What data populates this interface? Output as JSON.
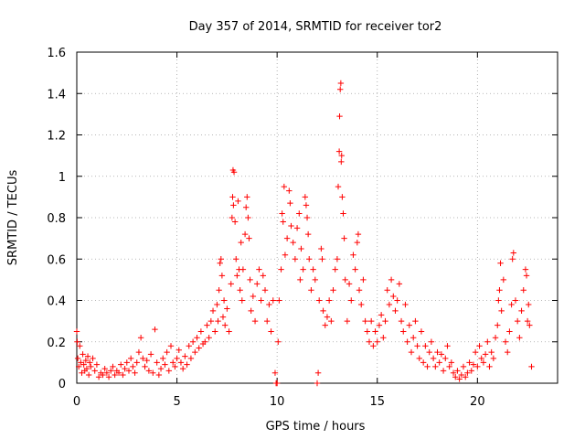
{
  "chart_data": {
    "type": "scatter",
    "title": "Day 357 of 2014, SRMTID for receiver tor2",
    "xlabel": "GPS time / hours",
    "ylabel": "SRMTID / TECUs",
    "xlim": [
      0,
      24
    ],
    "ylim": [
      0,
      1.6
    ],
    "x_ticks": [
      0,
      5,
      10,
      15,
      20
    ],
    "y_ticks": [
      0,
      0.2,
      0.4,
      0.6,
      0.8,
      1,
      1.2,
      1.4,
      1.6
    ],
    "x_tick_labels": [
      "0",
      "5",
      "10",
      "15",
      "20"
    ],
    "y_tick_labels": [
      "0",
      "0.2",
      "0.4",
      "0.6",
      "0.8",
      "1",
      "1.2",
      "1.4",
      "1.6"
    ],
    "grid": true,
    "marker": "plus",
    "color": "#ff0000",
    "series": [
      {
        "name": "SRMTID",
        "points": [
          [
            0.0,
            0.25
          ],
          [
            0.02,
            0.2
          ],
          [
            0.05,
            0.12
          ],
          [
            0.1,
            0.08
          ],
          [
            0.15,
            0.18
          ],
          [
            0.2,
            0.1
          ],
          [
            0.25,
            0.05
          ],
          [
            0.3,
            0.14
          ],
          [
            0.35,
            0.09
          ],
          [
            0.4,
            0.06
          ],
          [
            0.45,
            0.11
          ],
          [
            0.5,
            0.07
          ],
          [
            0.55,
            0.13
          ],
          [
            0.6,
            0.04
          ],
          [
            0.65,
            0.1
          ],
          [
            0.7,
            0.08
          ],
          [
            0.8,
            0.12
          ],
          [
            0.9,
            0.06
          ],
          [
            1.0,
            0.09
          ],
          [
            1.1,
            0.03
          ],
          [
            1.2,
            0.05
          ],
          [
            1.3,
            0.04
          ],
          [
            1.4,
            0.07
          ],
          [
            1.5,
            0.05
          ],
          [
            1.6,
            0.03
          ],
          [
            1.7,
            0.06
          ],
          [
            1.8,
            0.08
          ],
          [
            1.9,
            0.04
          ],
          [
            2.0,
            0.06
          ],
          [
            2.1,
            0.05
          ],
          [
            2.2,
            0.09
          ],
          [
            2.3,
            0.04
          ],
          [
            2.4,
            0.07
          ],
          [
            2.5,
            0.1
          ],
          [
            2.6,
            0.06
          ],
          [
            2.7,
            0.12
          ],
          [
            2.8,
            0.08
          ],
          [
            2.9,
            0.05
          ],
          [
            3.0,
            0.1
          ],
          [
            3.1,
            0.15
          ],
          [
            3.2,
            0.22
          ],
          [
            3.3,
            0.12
          ],
          [
            3.4,
            0.08
          ],
          [
            3.5,
            0.11
          ],
          [
            3.6,
            0.06
          ],
          [
            3.7,
            0.14
          ],
          [
            3.8,
            0.05
          ],
          [
            3.9,
            0.26
          ],
          [
            4.0,
            0.1
          ],
          [
            4.1,
            0.04
          ],
          [
            4.2,
            0.07
          ],
          [
            4.3,
            0.12
          ],
          [
            4.4,
            0.09
          ],
          [
            4.5,
            0.15
          ],
          [
            4.6,
            0.06
          ],
          [
            4.7,
            0.18
          ],
          [
            4.8,
            0.1
          ],
          [
            4.9,
            0.08
          ],
          [
            5.0,
            0.12
          ],
          [
            5.1,
            0.16
          ],
          [
            5.2,
            0.1
          ],
          [
            5.3,
            0.07
          ],
          [
            5.4,
            0.13
          ],
          [
            5.5,
            0.09
          ],
          [
            5.6,
            0.18
          ],
          [
            5.7,
            0.12
          ],
          [
            5.8,
            0.2
          ],
          [
            5.9,
            0.15
          ],
          [
            6.0,
            0.22
          ],
          [
            6.1,
            0.17
          ],
          [
            6.2,
            0.25
          ],
          [
            6.3,
            0.19
          ],
          [
            6.4,
            0.2
          ],
          [
            6.5,
            0.28
          ],
          [
            6.6,
            0.22
          ],
          [
            6.7,
            0.3
          ],
          [
            6.8,
            0.35
          ],
          [
            6.9,
            0.25
          ],
          [
            7.0,
            0.38
          ],
          [
            7.05,
            0.3
          ],
          [
            7.1,
            0.45
          ],
          [
            7.15,
            0.58
          ],
          [
            7.2,
            0.6
          ],
          [
            7.25,
            0.52
          ],
          [
            7.3,
            0.32
          ],
          [
            7.35,
            0.4
          ],
          [
            7.4,
            0.28
          ],
          [
            7.5,
            0.36
          ],
          [
            7.6,
            0.25
          ],
          [
            7.7,
            0.48
          ],
          [
            7.75,
            0.8
          ],
          [
            7.78,
            0.9
          ],
          [
            7.8,
            1.03
          ],
          [
            7.82,
            0.86
          ],
          [
            7.85,
            1.02
          ],
          [
            7.9,
            0.78
          ],
          [
            7.95,
            0.6
          ],
          [
            8.0,
            0.52
          ],
          [
            8.05,
            0.88
          ],
          [
            8.1,
            0.55
          ],
          [
            8.15,
            0.45
          ],
          [
            8.2,
            0.68
          ],
          [
            8.25,
            0.4
          ],
          [
            8.3,
            0.55
          ],
          [
            8.4,
            0.72
          ],
          [
            8.45,
            0.85
          ],
          [
            8.5,
            0.9
          ],
          [
            8.55,
            0.8
          ],
          [
            8.6,
            0.7
          ],
          [
            8.65,
            0.5
          ],
          [
            8.7,
            0.35
          ],
          [
            8.8,
            0.42
          ],
          [
            8.9,
            0.3
          ],
          [
            9.0,
            0.48
          ],
          [
            9.1,
            0.55
          ],
          [
            9.2,
            0.4
          ],
          [
            9.3,
            0.52
          ],
          [
            9.4,
            0.45
          ],
          [
            9.5,
            0.3
          ],
          [
            9.6,
            0.38
          ],
          [
            9.7,
            0.25
          ],
          [
            9.8,
            0.4
          ],
          [
            9.9,
            0.05
          ],
          [
            9.95,
            0.0
          ],
          [
            10.0,
            0.0
          ],
          [
            10.05,
            0.2
          ],
          [
            10.1,
            0.4
          ],
          [
            10.2,
            0.55
          ],
          [
            10.25,
            0.82
          ],
          [
            10.3,
            0.78
          ],
          [
            10.35,
            0.95
          ],
          [
            10.4,
            0.62
          ],
          [
            10.5,
            0.7
          ],
          [
            10.6,
            0.93
          ],
          [
            10.65,
            0.87
          ],
          [
            10.7,
            0.76
          ],
          [
            10.8,
            0.68
          ],
          [
            10.9,
            0.6
          ],
          [
            11.0,
            0.75
          ],
          [
            11.1,
            0.82
          ],
          [
            11.15,
            0.5
          ],
          [
            11.2,
            0.65
          ],
          [
            11.3,
            0.55
          ],
          [
            11.4,
            0.9
          ],
          [
            11.45,
            0.86
          ],
          [
            11.5,
            0.8
          ],
          [
            11.55,
            0.72
          ],
          [
            11.6,
            0.6
          ],
          [
            11.7,
            0.45
          ],
          [
            11.8,
            0.55
          ],
          [
            11.9,
            0.5
          ],
          [
            12.0,
            0.0
          ],
          [
            12.05,
            0.05
          ],
          [
            12.1,
            0.4
          ],
          [
            12.2,
            0.65
          ],
          [
            12.25,
            0.6
          ],
          [
            12.3,
            0.35
          ],
          [
            12.4,
            0.28
          ],
          [
            12.5,
            0.32
          ],
          [
            12.6,
            0.4
          ],
          [
            12.7,
            0.3
          ],
          [
            12.8,
            0.45
          ],
          [
            12.9,
            0.55
          ],
          [
            13.0,
            0.6
          ],
          [
            13.05,
            0.95
          ],
          [
            13.1,
            1.12
          ],
          [
            13.12,
            1.29
          ],
          [
            13.15,
            1.42
          ],
          [
            13.18,
            1.45
          ],
          [
            13.2,
            1.07
          ],
          [
            13.22,
            1.1
          ],
          [
            13.25,
            0.9
          ],
          [
            13.3,
            0.82
          ],
          [
            13.35,
            0.7
          ],
          [
            13.4,
            0.5
          ],
          [
            13.5,
            0.3
          ],
          [
            13.6,
            0.48
          ],
          [
            13.7,
            0.4
          ],
          [
            13.8,
            0.62
          ],
          [
            13.9,
            0.55
          ],
          [
            14.0,
            0.68
          ],
          [
            14.05,
            0.72
          ],
          [
            14.1,
            0.45
          ],
          [
            14.2,
            0.38
          ],
          [
            14.3,
            0.5
          ],
          [
            14.4,
            0.3
          ],
          [
            14.5,
            0.25
          ],
          [
            14.6,
            0.2
          ],
          [
            14.7,
            0.3
          ],
          [
            14.8,
            0.18
          ],
          [
            14.9,
            0.25
          ],
          [
            15.0,
            0.2
          ],
          [
            15.1,
            0.28
          ],
          [
            15.2,
            0.33
          ],
          [
            15.3,
            0.22
          ],
          [
            15.4,
            0.3
          ],
          [
            15.5,
            0.45
          ],
          [
            15.6,
            0.38
          ],
          [
            15.7,
            0.5
          ],
          [
            15.8,
            0.42
          ],
          [
            15.9,
            0.35
          ],
          [
            16.0,
            0.4
          ],
          [
            16.1,
            0.48
          ],
          [
            16.2,
            0.3
          ],
          [
            16.3,
            0.25
          ],
          [
            16.4,
            0.38
          ],
          [
            16.5,
            0.2
          ],
          [
            16.6,
            0.28
          ],
          [
            16.7,
            0.15
          ],
          [
            16.8,
            0.22
          ],
          [
            16.9,
            0.3
          ],
          [
            17.0,
            0.18
          ],
          [
            17.1,
            0.12
          ],
          [
            17.2,
            0.25
          ],
          [
            17.3,
            0.1
          ],
          [
            17.4,
            0.18
          ],
          [
            17.5,
            0.08
          ],
          [
            17.6,
            0.15
          ],
          [
            17.7,
            0.2
          ],
          [
            17.8,
            0.12
          ],
          [
            17.9,
            0.08
          ],
          [
            18.0,
            0.15
          ],
          [
            18.1,
            0.1
          ],
          [
            18.2,
            0.14
          ],
          [
            18.3,
            0.06
          ],
          [
            18.4,
            0.12
          ],
          [
            18.5,
            0.18
          ],
          [
            18.6,
            0.08
          ],
          [
            18.7,
            0.1
          ],
          [
            18.8,
            0.05
          ],
          [
            18.9,
            0.03
          ],
          [
            19.0,
            0.06
          ],
          [
            19.1,
            0.02
          ],
          [
            19.2,
            0.04
          ],
          [
            19.3,
            0.08
          ],
          [
            19.4,
            0.03
          ],
          [
            19.5,
            0.05
          ],
          [
            19.6,
            0.1
          ],
          [
            19.7,
            0.06
          ],
          [
            19.8,
            0.09
          ],
          [
            19.9,
            0.15
          ],
          [
            20.0,
            0.08
          ],
          [
            20.1,
            0.18
          ],
          [
            20.2,
            0.12
          ],
          [
            20.3,
            0.1
          ],
          [
            20.4,
            0.14
          ],
          [
            20.5,
            0.2
          ],
          [
            20.6,
            0.08
          ],
          [
            20.7,
            0.15
          ],
          [
            20.8,
            0.12
          ],
          [
            20.9,
            0.22
          ],
          [
            21.0,
            0.28
          ],
          [
            21.05,
            0.4
          ],
          [
            21.1,
            0.45
          ],
          [
            21.15,
            0.58
          ],
          [
            21.2,
            0.35
          ],
          [
            21.3,
            0.5
          ],
          [
            21.4,
            0.2
          ],
          [
            21.5,
            0.15
          ],
          [
            21.6,
            0.25
          ],
          [
            21.7,
            0.38
          ],
          [
            21.75,
            0.6
          ],
          [
            21.8,
            0.63
          ],
          [
            21.9,
            0.4
          ],
          [
            22.0,
            0.3
          ],
          [
            22.1,
            0.22
          ],
          [
            22.2,
            0.35
          ],
          [
            22.3,
            0.45
          ],
          [
            22.4,
            0.55
          ],
          [
            22.45,
            0.52
          ],
          [
            22.5,
            0.3
          ],
          [
            22.55,
            0.38
          ],
          [
            22.6,
            0.28
          ],
          [
            22.7,
            0.08
          ]
        ]
      }
    ]
  }
}
